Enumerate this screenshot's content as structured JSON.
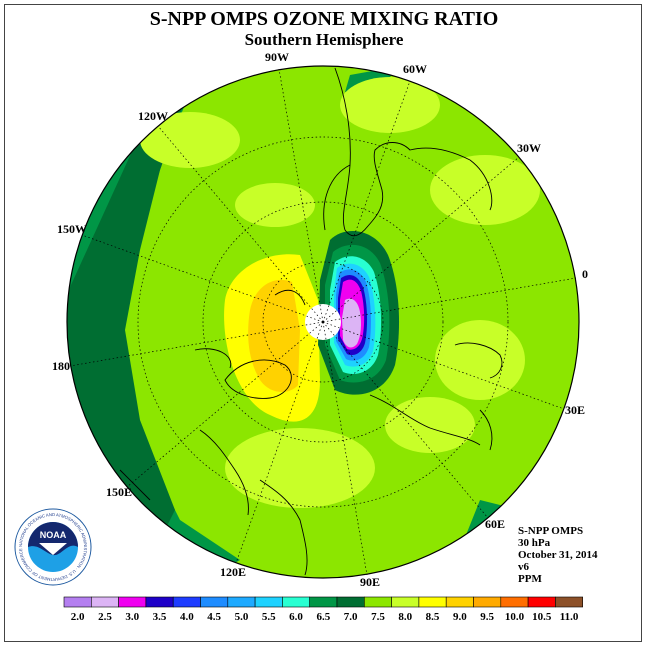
{
  "header": {
    "title": "S-NPP OMPS OZONE MIXING RATIO",
    "subtitle": "Southern Hemisphere"
  },
  "map": {
    "projection": "south-polar-stereographic",
    "longitude_labels": [
      "90W",
      "60W",
      "30W",
      "0",
      "30E",
      "60E",
      "90E",
      "120E",
      "150E",
      "180",
      "150W",
      "120W"
    ]
  },
  "info": {
    "instrument": "S-NPP OMPS",
    "level": "30 hPa",
    "date": "October 31, 2014",
    "version": "v6",
    "units": "PPM"
  },
  "logo": {
    "text": "NOAA",
    "ring_text": "NATIONAL OCEANIC AND ATMOSPHERIC ADMINISTRATION · U.S. DEPARTMENT OF COMMERCE"
  },
  "colorbar": {
    "labels": [
      "2.0",
      "2.5",
      "3.0",
      "3.5",
      "4.0",
      "4.5",
      "5.0",
      "5.5",
      "6.0",
      "6.5",
      "7.0",
      "7.5",
      "8.0",
      "8.5",
      "9.0",
      "9.5",
      "10.0",
      "10.5",
      "11.0"
    ],
    "colors": [
      "#b47ff0",
      "#dcb4f5",
      "#f000f0",
      "#1e00c8",
      "#1e3cff",
      "#1e8cff",
      "#1eaaff",
      "#1ed2ff",
      "#28ffd2",
      "#009646",
      "#006e32",
      "#8ce600",
      "#c8ff28",
      "#ffff00",
      "#ffd200",
      "#ffaa00",
      "#ff6e00",
      "#ff0000",
      "#8c5028"
    ]
  }
}
